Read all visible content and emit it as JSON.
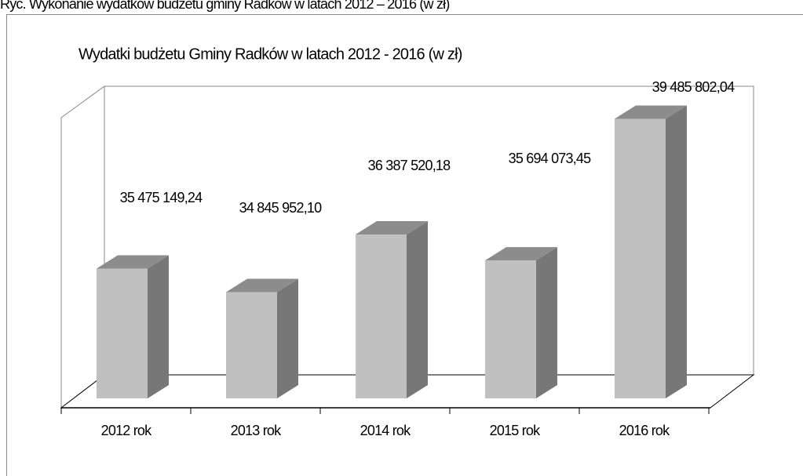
{
  "caption": "Ryc. Wykonanie wydatków budżetu gminy Radków w latach 2012 – 2016 (w zł)",
  "chart_data": {
    "type": "bar3d",
    "title": "Wydatki budżetu Gminy Radków w latach 2012 - 2016 (w zł)",
    "categories": [
      "2012 rok",
      "2013 rok",
      "2014 rok",
      "2015 rok",
      "2016 rok"
    ],
    "values": [
      35475149.24,
      34845952.1,
      36387520.18,
      35694073.45,
      39485802.04
    ],
    "value_labels": [
      "35 475 149,24",
      "34 845 952,10",
      "36 387 520,18",
      "35 694 073,45",
      "39 485 802,04"
    ],
    "color": "#c0c0c0",
    "ylim": [
      32000000,
      40000000
    ]
  }
}
